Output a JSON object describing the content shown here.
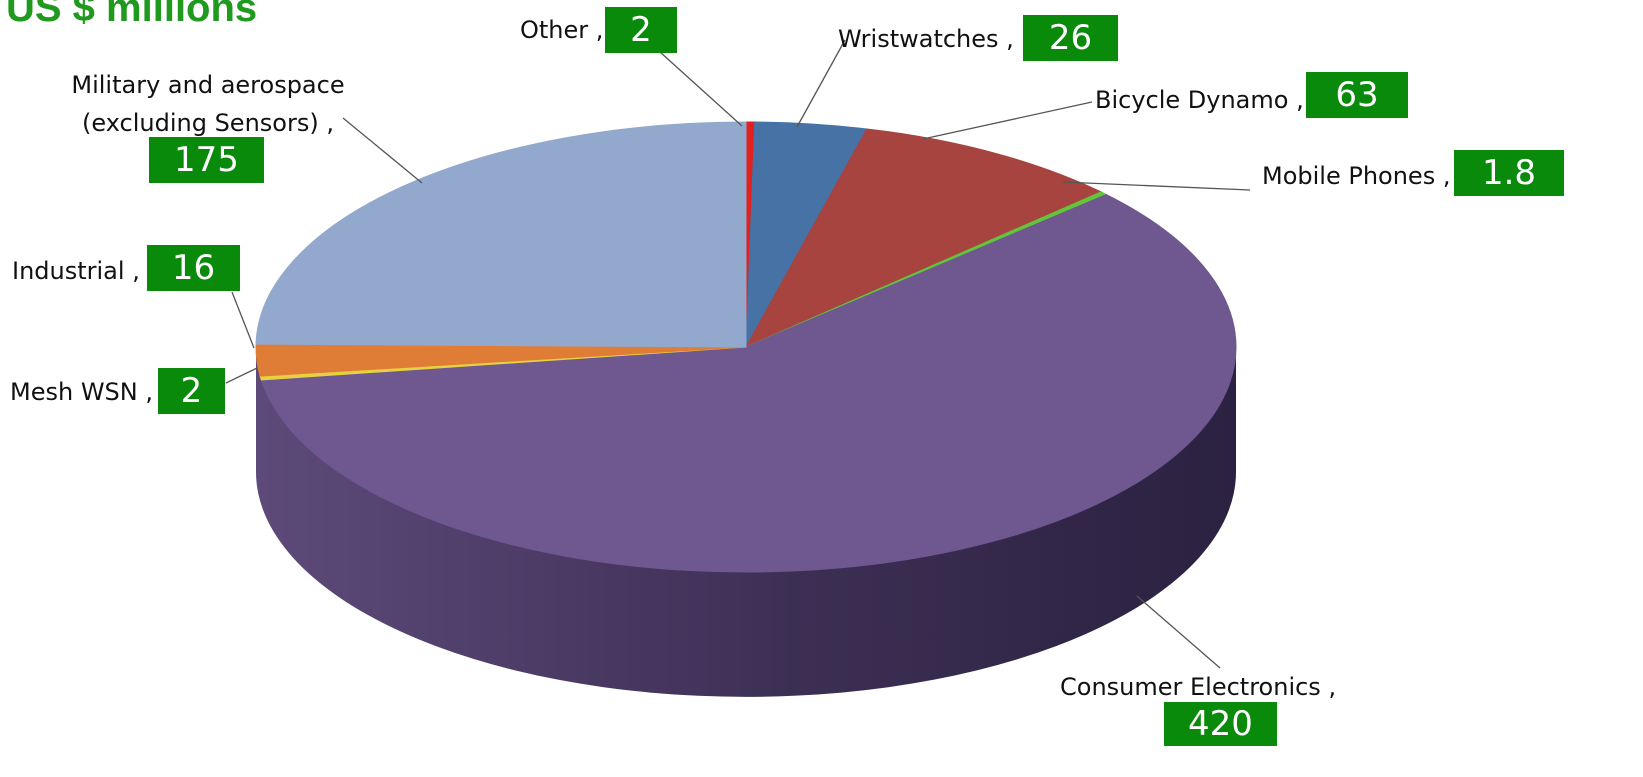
{
  "chart_data": {
    "type": "pie",
    "title": "US $ millions",
    "three_d": true,
    "legend": "none",
    "slices": [
      {
        "label": "Other",
        "value": 2,
        "color": "#e0211f"
      },
      {
        "label": "Wristwatches",
        "value": 26,
        "color": "#4672a6"
      },
      {
        "label": "Bicycle Dynamo",
        "value": 63,
        "color": "#a7443f"
      },
      {
        "label": "Mobile Phones",
        "value": 1.8,
        "color": "#62c63b"
      },
      {
        "label": "Consumer Electronics",
        "value": 420,
        "color": "#6f5790"
      },
      {
        "label": "Mesh WSN",
        "value": 2,
        "color": "#e6d240"
      },
      {
        "label": "Industrial",
        "value": 16,
        "color": "#df7d37"
      },
      {
        "label": "Military and aerospace (excluding Sensors)",
        "value": 175,
        "color": "#93a8cd"
      }
    ]
  },
  "labels": {
    "other": {
      "text": "Other ,",
      "value": "2"
    },
    "wristwatches": {
      "text": "Wristwatches ,",
      "value": "26"
    },
    "bicycle_dynamo": {
      "text": "Bicycle Dynamo ,",
      "value": "63"
    },
    "mobile_phones": {
      "text": "Mobile Phones ,",
      "value": "1.8"
    },
    "consumer_electronics": {
      "text": "Consumer Electronics ,",
      "value": "420"
    },
    "mesh_wsn": {
      "text": "Mesh WSN ,",
      "value": "2"
    },
    "industrial": {
      "text": "Industrial ,",
      "value": "16"
    },
    "military_line1": "Military and aerospace",
    "military_line2": "(excluding Sensors) ,",
    "military_value": "175"
  }
}
